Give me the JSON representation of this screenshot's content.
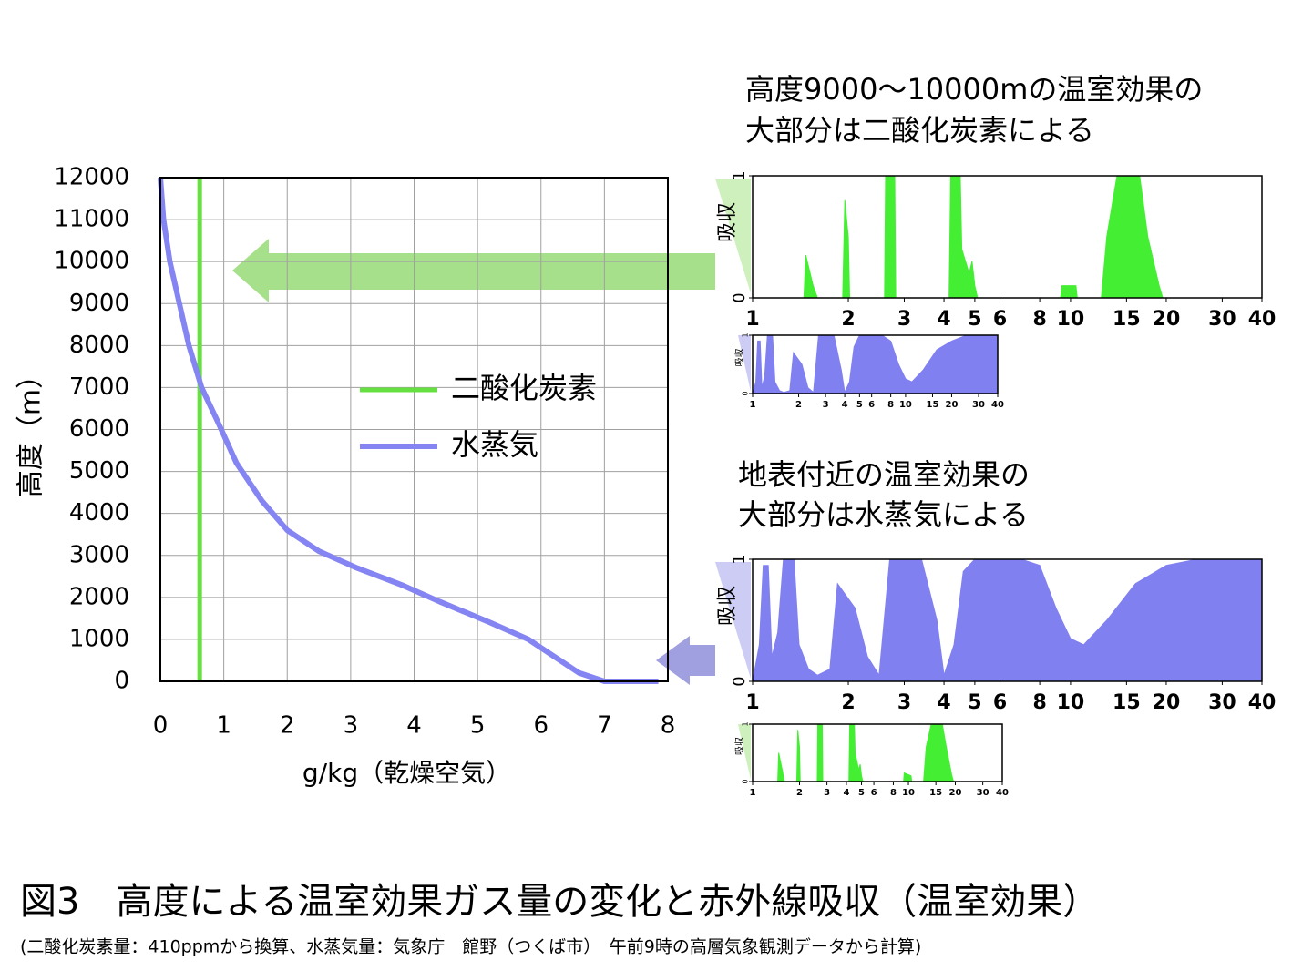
{
  "annotations": [
    "高度9000～10000mの温室効果の",
    "大部分は二酸化炭素による",
    "地表付近の温室効果の",
    "大部分は水蒸気による"
  ],
  "figure": {
    "title": "図3　高度による温室効果ガス量の変化と赤外線吸収（温室効果）",
    "note": "(二酸化炭素量：410ppmから換算、水蒸気量：気象庁　館野（つくば市）　午前9時の高層気象観測データから計算)"
  },
  "chart_data": [
    {
      "type": "line",
      "xlabel": "g/kg（乾燥空気）",
      "ylabel": "高度（m）",
      "xlim": [
        0,
        8
      ],
      "xticks": [
        0,
        1,
        2,
        3,
        4,
        5,
        6,
        7,
        8
      ],
      "ylim": [
        0,
        12000
      ],
      "yticks": [
        0,
        1000,
        2000,
        3000,
        4000,
        5000,
        6000,
        7000,
        8000,
        9000,
        10000,
        11000,
        12000
      ],
      "grid": true,
      "series": [
        {
          "name": "二酸化炭素",
          "color": "#66e040",
          "x": [
            0.62,
            0.62
          ],
          "values": [
            0,
            12000
          ]
        },
        {
          "name": "水蒸気",
          "color": "#8484f2",
          "x": [
            7.85,
            7.0,
            6.6,
            6.2,
            5.8,
            5.2,
            4.4,
            3.8,
            3.1,
            2.5,
            2.0,
            1.6,
            1.2,
            0.9,
            0.65,
            0.45,
            0.3,
            0.15,
            0.05,
            0
          ],
          "values": [
            0,
            0,
            200,
            600,
            1000,
            1400,
            1900,
            2300,
            2700,
            3100,
            3600,
            4300,
            5200,
            6200,
            7000,
            8000,
            9000,
            10000,
            11000,
            12000
          ]
        }
      ]
    },
    {
      "type": "area",
      "ylabel": "吸収",
      "color": "#44ee33",
      "xlog": true,
      "xlim": [
        1,
        40
      ],
      "xticks": [
        1,
        2,
        3,
        4,
        5,
        6,
        8,
        10,
        15,
        20,
        30,
        40
      ],
      "ylim": [
        0,
        1
      ],
      "yticks": [
        0,
        1
      ],
      "x": [
        1,
        1.45,
        1.47,
        1.55,
        1.6,
        1.92,
        1.95,
        2.0,
        2.02,
        2.6,
        2.62,
        2.8,
        2.82,
        4.15,
        4.2,
        4.5,
        4.55,
        4.8,
        4.9,
        5.0,
        5.1,
        9.3,
        9.4,
        10.4,
        10.5,
        12.5,
        13,
        14,
        15,
        16.5,
        17.5,
        19,
        19.5,
        40
      ],
      "values": [
        0,
        0,
        0.35,
        0.1,
        0,
        0,
        0.8,
        0.5,
        0,
        0,
        1,
        1,
        0,
        0,
        1,
        1,
        0.4,
        0.2,
        0.3,
        0.1,
        0,
        0,
        0.1,
        0.1,
        0,
        0,
        0.5,
        1,
        1,
        1,
        0.5,
        0.1,
        0,
        0
      ]
    },
    {
      "type": "area",
      "ylabel": "吸収",
      "color": "#8080f0",
      "xlog": true,
      "xlim": [
        1,
        40
      ],
      "xticks": [
        1,
        2,
        3,
        4,
        5,
        6,
        8,
        10,
        15,
        20,
        30,
        40
      ],
      "ylim": [
        0,
        1
      ],
      "yticks": [
        0,
        1
      ],
      "x": [
        1,
        1.05,
        1.08,
        1.12,
        1.15,
        1.2,
        1.25,
        1.35,
        1.4,
        1.5,
        1.6,
        1.75,
        1.85,
        2.1,
        2.3,
        2.5,
        2.7,
        3.0,
        3.4,
        3.8,
        4.0,
        4.3,
        4.6,
        5,
        6,
        7,
        8,
        9,
        10,
        11,
        13,
        16,
        20,
        25,
        30,
        40
      ],
      "values": [
        0,
        0.2,
        0.9,
        0.9,
        0.1,
        0.3,
        1,
        1,
        0.2,
        0.05,
        0.02,
        0.05,
        0.7,
        0.5,
        0.1,
        0.02,
        1,
        1,
        1,
        0.4,
        0.02,
        0.2,
        0.8,
        1,
        1,
        1,
        0.9,
        0.5,
        0.25,
        0.2,
        0.4,
        0.75,
        0.9,
        1,
        1,
        1
      ]
    },
    {
      "type": "area",
      "ylabel": "吸収",
      "color": "#8080f0",
      "xlog": true,
      "xlim": [
        1,
        40
      ],
      "xticks": [
        1,
        2,
        3,
        4,
        5,
        6,
        8,
        10,
        15,
        20,
        30,
        40
      ],
      "ylim": [
        0,
        1
      ],
      "yticks": [
        0,
        1
      ],
      "x": [
        1,
        1.05,
        1.08,
        1.12,
        1.15,
        1.2,
        1.25,
        1.35,
        1.4,
        1.5,
        1.6,
        1.75,
        1.85,
        2.1,
        2.3,
        2.5,
        2.7,
        3.0,
        3.4,
        3.8,
        4.0,
        4.3,
        4.6,
        5,
        6,
        7,
        8,
        9,
        10,
        11,
        13,
        16,
        20,
        25,
        30,
        40
      ],
      "values": [
        0,
        0.3,
        0.95,
        0.95,
        0.2,
        0.4,
        1,
        1,
        0.3,
        0.1,
        0.05,
        0.1,
        0.8,
        0.6,
        0.2,
        0.05,
        1,
        1,
        1,
        0.5,
        0.05,
        0.3,
        0.9,
        1,
        1,
        1,
        0.95,
        0.6,
        0.35,
        0.3,
        0.5,
        0.8,
        0.95,
        1,
        1,
        1
      ]
    },
    {
      "type": "area",
      "ylabel": "吸収",
      "color": "#44ee33",
      "xlog": true,
      "xlim": [
        1,
        40
      ],
      "xticks": [
        1,
        2,
        3,
        4,
        5,
        6,
        8,
        10,
        15,
        20,
        30,
        40
      ],
      "ylim": [
        0,
        1
      ],
      "yticks": [
        0,
        1
      ],
      "x": [
        1,
        1.45,
        1.47,
        1.55,
        1.6,
        1.92,
        1.95,
        2.0,
        2.02,
        2.6,
        2.62,
        2.8,
        2.82,
        4.15,
        4.2,
        4.5,
        4.55,
        4.8,
        4.9,
        5.0,
        5.1,
        9.3,
        9.4,
        10.4,
        10.5,
        12.5,
        13,
        14,
        15,
        16.5,
        17.5,
        19,
        19.5,
        40
      ],
      "values": [
        0,
        0,
        0.5,
        0.2,
        0,
        0,
        0.9,
        0.6,
        0,
        0,
        1,
        1,
        0,
        0,
        1,
        1,
        0.5,
        0.2,
        0.3,
        0.1,
        0,
        0,
        0.15,
        0.1,
        0,
        0,
        0.6,
        1,
        1,
        1,
        0.6,
        0.1,
        0,
        0
      ]
    }
  ]
}
